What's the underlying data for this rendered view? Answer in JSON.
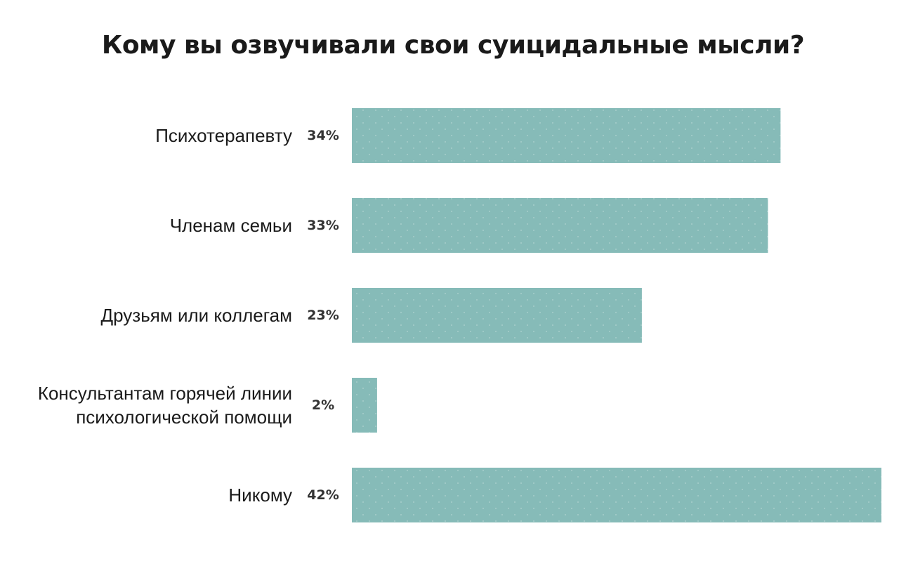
{
  "chart_data": {
    "type": "bar",
    "orientation": "horizontal",
    "title": "Кому вы озвучивали свои суицидальные мысли?",
    "categories": [
      "Психотерапевту",
      "Членам семьи",
      "Друзьям или коллегам",
      "Консультантам горячей линии психологической помощи",
      "Никому"
    ],
    "category_lines": [
      [
        "Психотерапевту"
      ],
      [
        "Членам семьи"
      ],
      [
        "Друзьям или коллегам"
      ],
      [
        "Консультантам горячей линии",
        "психологической помощи"
      ],
      [
        "Никому"
      ]
    ],
    "values": [
      34,
      33,
      23,
      2,
      42
    ],
    "value_labels": [
      "34%",
      "33%",
      "23%",
      "2%",
      "42%"
    ],
    "unit": "%",
    "xlim": [
      0,
      42
    ],
    "grid": false,
    "legend": "none",
    "bar_color": "#86bbb8"
  }
}
